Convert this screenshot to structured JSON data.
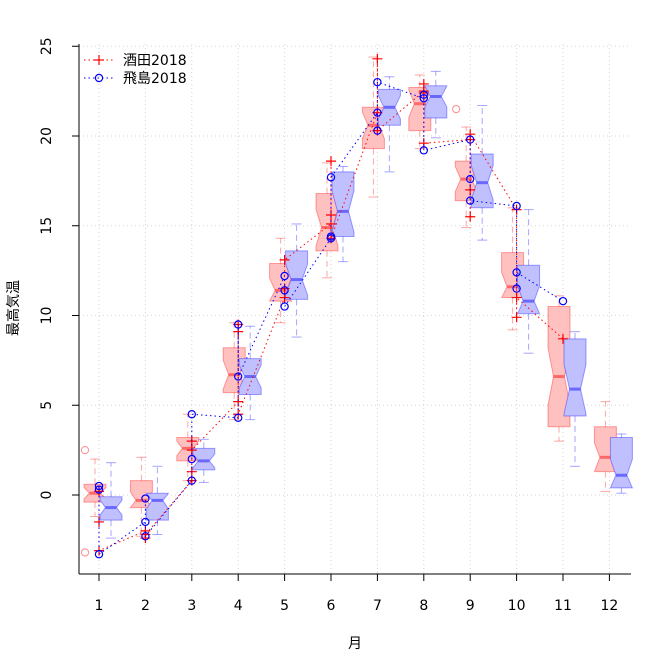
{
  "chart_data": {
    "type": "boxplot",
    "xlabel": "月",
    "ylabel": "最高気温",
    "categories": [
      "1",
      "2",
      "3",
      "4",
      "5",
      "6",
      "7",
      "8",
      "9",
      "10",
      "11",
      "12"
    ],
    "yticks": [
      0,
      5,
      10,
      15,
      20,
      25
    ],
    "ylim": [
      -4.5,
      25.5
    ],
    "grid": true,
    "legend_position": "top-left",
    "series": [
      {
        "name": "酒田2018",
        "color": "#ff0000",
        "fill": "#ffc0c0",
        "boxes": [
          {
            "lw": -1.2,
            "q1": -0.4,
            "med": 0.1,
            "q3": 0.6,
            "uw": 2.0,
            "out": [
              2.5,
              -3.2
            ]
          },
          {
            "lw": -2.3,
            "q1": -0.7,
            "med": -0.3,
            "q3": 0.8,
            "uw": 2.1,
            "out": []
          },
          {
            "lw": 0.8,
            "q1": 1.9,
            "med": 2.6,
            "q3": 3.2,
            "uw": 4.5,
            "out": []
          },
          {
            "lw": 4.2,
            "q1": 5.7,
            "med": 6.7,
            "q3": 8.2,
            "uw": 9.6,
            "out": []
          },
          {
            "lw": 9.6,
            "q1": 10.8,
            "med": 11.4,
            "q3": 12.9,
            "uw": 14.3,
            "out": []
          },
          {
            "lw": 12.1,
            "q1": 13.6,
            "med": 14.9,
            "q3": 16.8,
            "uw": 18.5,
            "out": []
          },
          {
            "lw": 16.6,
            "q1": 19.3,
            "med": 20.6,
            "q3": 21.6,
            "uw": 24.4,
            "out": []
          },
          {
            "lw": 19.3,
            "q1": 20.3,
            "med": 21.8,
            "q3": 22.7,
            "uw": 23.4,
            "out": []
          },
          {
            "lw": 14.9,
            "q1": 16.4,
            "med": 17.6,
            "q3": 18.6,
            "uw": 20.5,
            "out": [
              21.5
            ]
          },
          {
            "lw": 9.2,
            "q1": 11.0,
            "med": 11.6,
            "q3": 13.5,
            "uw": 16.0,
            "out": []
          },
          {
            "lw": 3.0,
            "q1": 3.8,
            "med": 6.6,
            "q3": 10.5,
            "uw": 11.1,
            "out": []
          },
          {
            "lw": 0.2,
            "q1": 1.3,
            "med": 2.1,
            "q3": 3.8,
            "uw": 5.2,
            "out": []
          }
        ],
        "monthly": [
          -1.5,
          -2.4,
          3.0,
          5.2,
          13.0,
          18.6,
          24.3,
          22.9,
          15.5,
          9.9,
          8.7,
          null
        ],
        "trace": [
          [
            1,
            0.2
          ],
          [
            1,
            -1.5
          ],
          [
            1,
            -3.1
          ],
          [
            2,
            -2.0
          ],
          [
            2,
            -2.4
          ],
          [
            2,
            -2.2
          ],
          [
            3,
            0.8
          ],
          [
            3,
            1.3
          ],
          [
            3,
            3.0
          ],
          [
            3,
            2.5
          ],
          [
            4,
            5.2
          ],
          [
            4,
            9.1
          ],
          [
            4,
            9.5
          ],
          [
            4,
            4.5
          ],
          [
            5,
            11.0
          ],
          [
            5,
            11.5
          ],
          [
            5,
            13.1
          ],
          [
            6,
            15.1
          ],
          [
            6,
            15.6
          ],
          [
            6,
            18.6
          ],
          [
            6,
            14.3
          ],
          [
            7,
            21.3
          ],
          [
            7,
            24.3
          ],
          [
            7,
            20.3
          ],
          [
            8,
            22.5
          ],
          [
            8,
            22.9
          ],
          [
            8,
            22.4
          ],
          [
            8,
            19.6
          ],
          [
            9,
            19.8
          ],
          [
            9,
            15.5
          ],
          [
            9,
            17.0
          ],
          [
            9,
            20.1
          ],
          [
            10,
            15.9
          ],
          [
            10,
            9.9
          ],
          [
            10,
            11.0
          ],
          [
            11,
            8.7
          ]
        ]
      },
      {
        "name": "飛島2018",
        "color": "#0000ff",
        "fill": "#c0c0ff",
        "boxes": [
          {
            "lw": -2.4,
            "q1": -1.4,
            "med": -0.7,
            "q3": -0.1,
            "uw": 1.8,
            "out": []
          },
          {
            "lw": -2.2,
            "q1": -1.4,
            "med": -0.3,
            "q3": 0.1,
            "uw": 1.6,
            "out": []
          },
          {
            "lw": 0.7,
            "q1": 1.4,
            "med": 1.9,
            "q3": 2.6,
            "uw": 3.1,
            "out": []
          },
          {
            "lw": 4.2,
            "q1": 5.6,
            "med": 6.6,
            "q3": 7.6,
            "uw": 9.4,
            "out": []
          },
          {
            "lw": 8.8,
            "q1": 10.9,
            "med": 12.0,
            "q3": 13.6,
            "uw": 15.1,
            "out": []
          },
          {
            "lw": 13.0,
            "q1": 14.4,
            "med": 15.8,
            "q3": 18.0,
            "uw": 18.3,
            "out": []
          },
          {
            "lw": 18.0,
            "q1": 20.6,
            "med": 21.6,
            "q3": 22.6,
            "uw": 23.3,
            "out": []
          },
          {
            "lw": 19.9,
            "q1": 21.0,
            "med": 22.2,
            "q3": 22.8,
            "uw": 23.6,
            "out": []
          },
          {
            "lw": 14.2,
            "q1": 16.0,
            "med": 17.4,
            "q3": 19.0,
            "uw": 21.7,
            "out": []
          },
          {
            "lw": 7.9,
            "q1": 10.1,
            "med": 10.8,
            "q3": 12.8,
            "uw": 15.9,
            "out": []
          },
          {
            "lw": 1.6,
            "q1": 4.4,
            "med": 5.9,
            "q3": 8.7,
            "uw": 9.1,
            "out": []
          },
          {
            "lw": 0.1,
            "q1": 0.4,
            "med": 1.1,
            "q3": 3.2,
            "uw": 3.4,
            "out": []
          }
        ],
        "monthly": [
          -3.3,
          -2.3,
          0.8,
          4.3,
          10.5,
          17.7,
          23.0,
          19.2,
          16.4,
          16.1,
          10.8,
          null
        ],
        "trace": [
          [
            1,
            0.3
          ],
          [
            1,
            0.5
          ],
          [
            1,
            -3.3
          ],
          [
            2,
            -1.5
          ],
          [
            2,
            -0.2
          ],
          [
            2,
            -2.3
          ],
          [
            3,
            0.8
          ],
          [
            3,
            2.0
          ],
          [
            3,
            4.5
          ],
          [
            4,
            4.3
          ],
          [
            4,
            9.5
          ],
          [
            4,
            6.6
          ],
          [
            5,
            12.2
          ],
          [
            5,
            11.4
          ],
          [
            5,
            10.5
          ],
          [
            6,
            14.3
          ],
          [
            6,
            14.4
          ],
          [
            6,
            17.7
          ],
          [
            7,
            21.3
          ],
          [
            7,
            20.3
          ],
          [
            7,
            23.0
          ],
          [
            8,
            22.1
          ],
          [
            8,
            22.3
          ],
          [
            8,
            19.2
          ],
          [
            9,
            19.8
          ],
          [
            9,
            17.6
          ],
          [
            9,
            16.4
          ],
          [
            10,
            16.1
          ],
          [
            10,
            11.5
          ],
          [
            10,
            12.4
          ],
          [
            11,
            10.8
          ]
        ]
      }
    ]
  }
}
